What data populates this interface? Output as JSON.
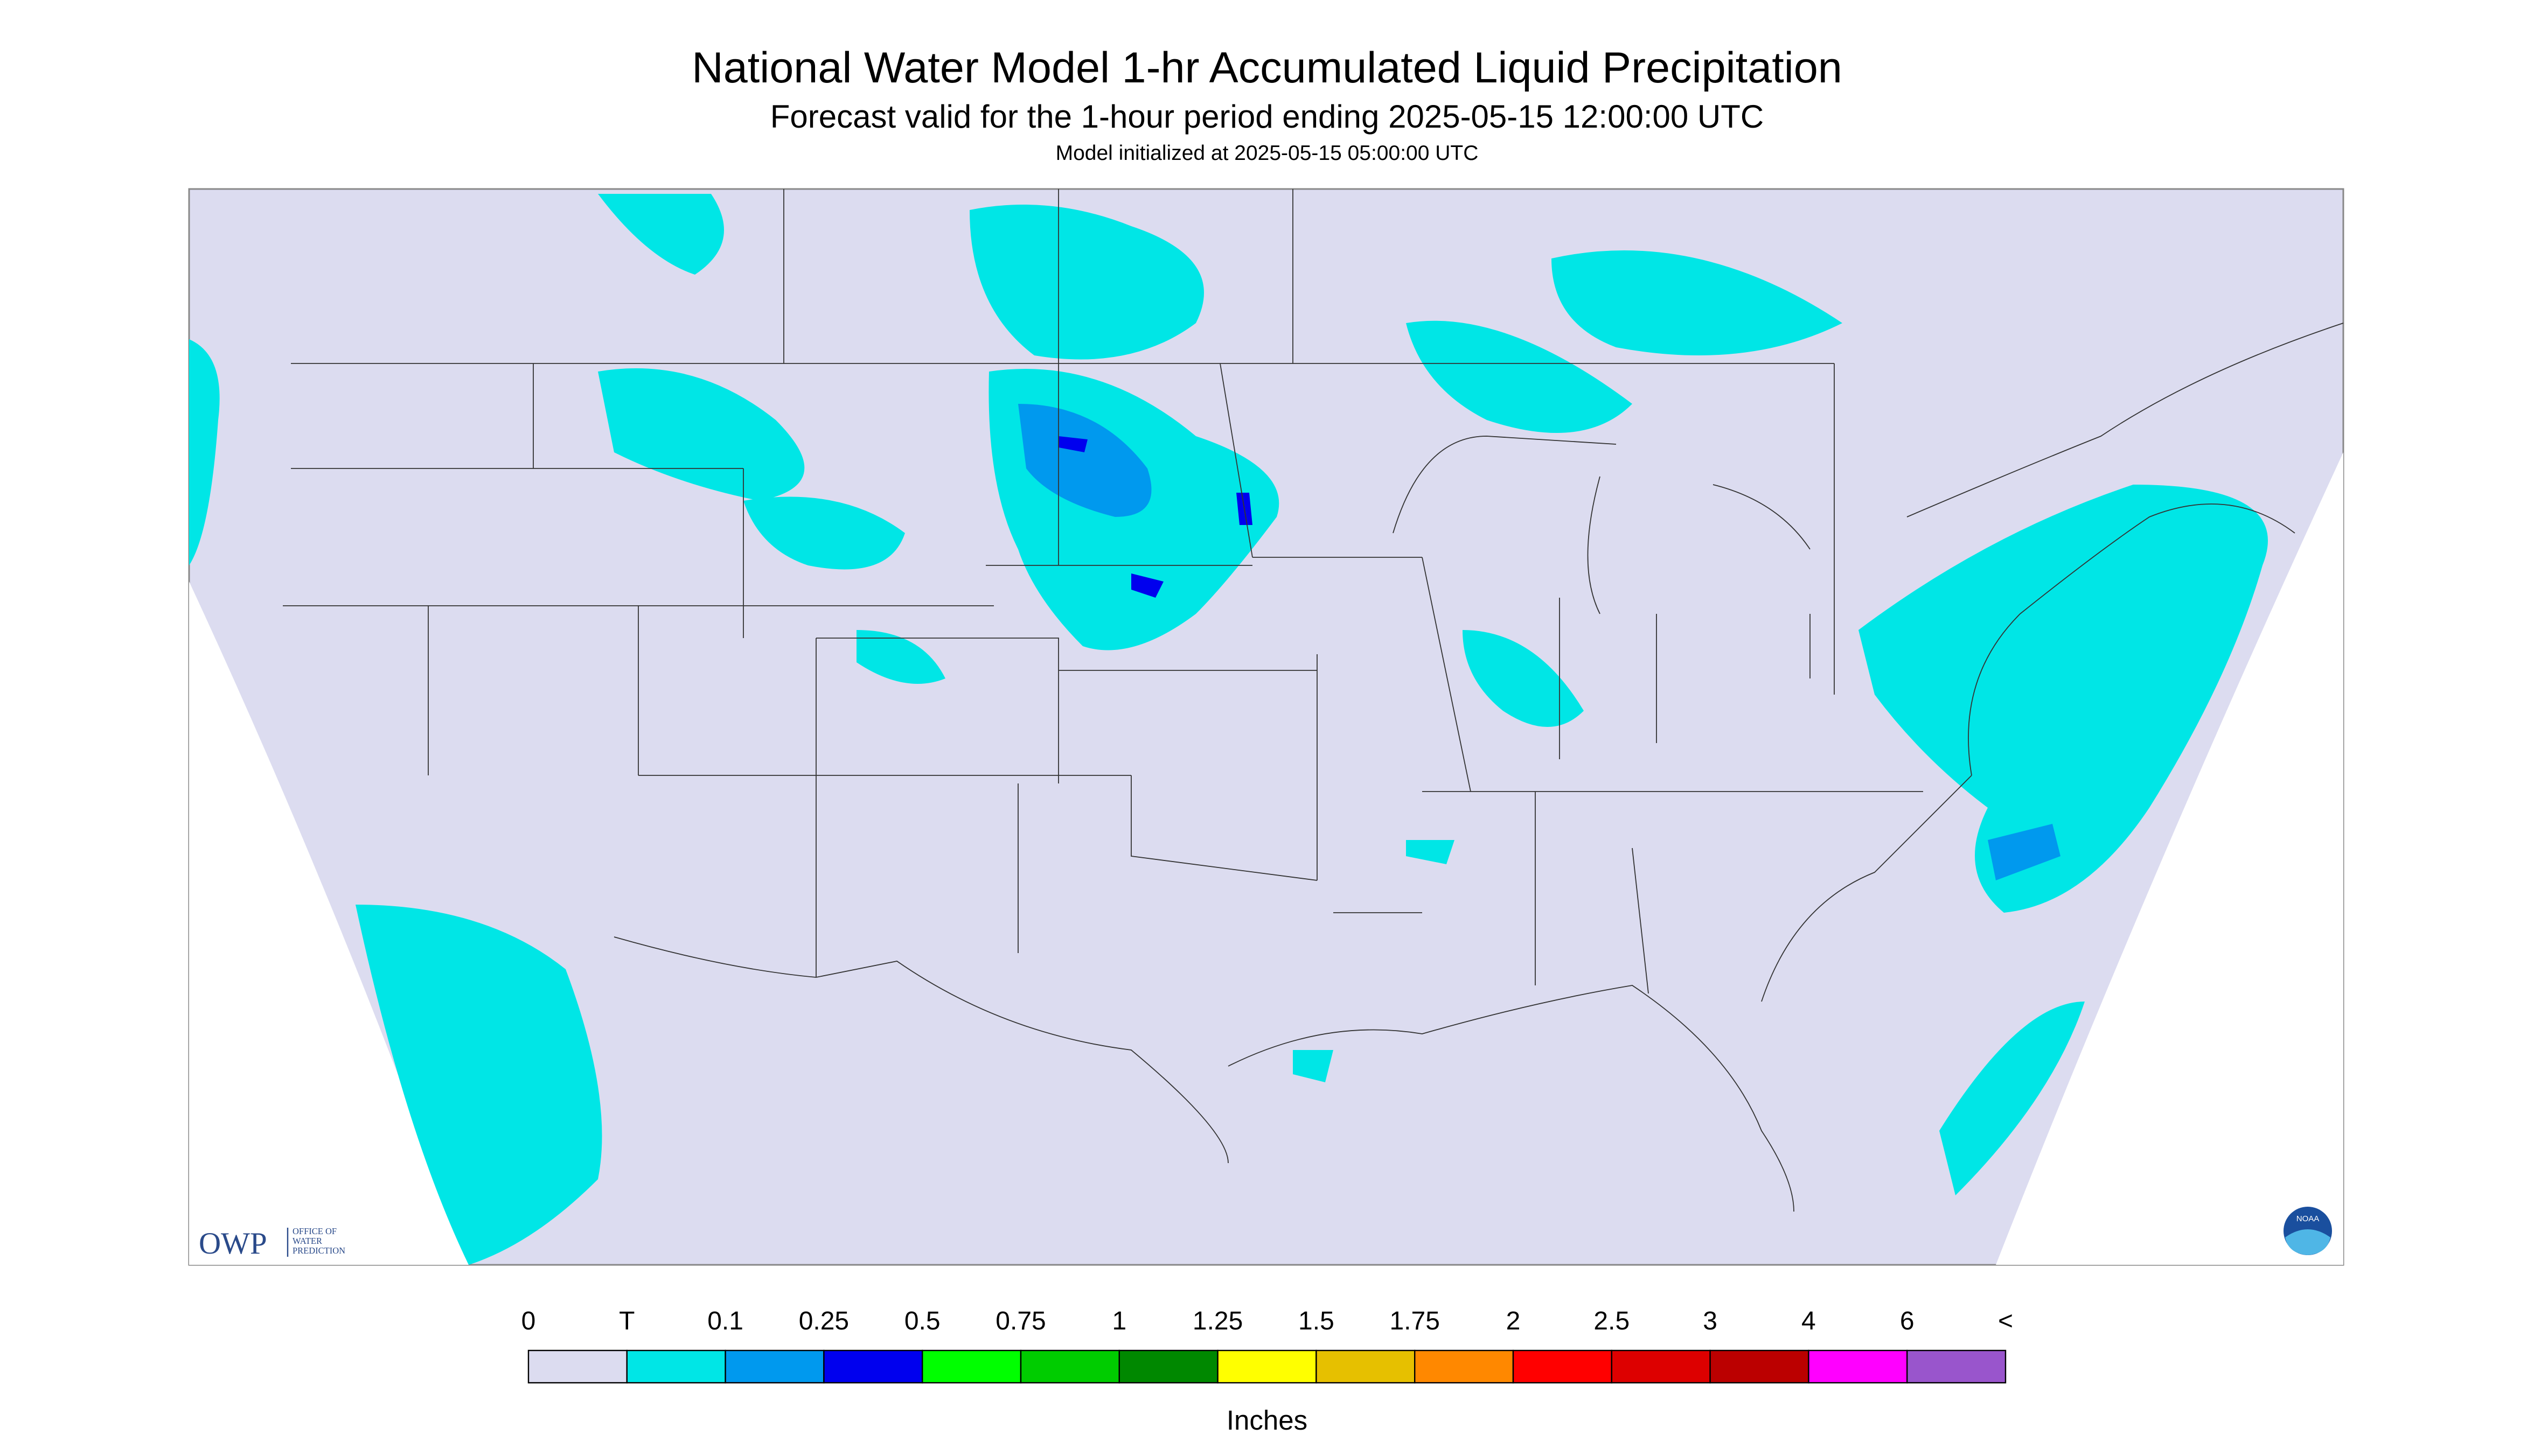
{
  "header": {
    "title": "National Water Model 1-hr Accumulated Liquid Precipitation",
    "subtitle": "Forecast valid for the 1-hour period ending 2025-05-15 12:00:00 UTC",
    "note": "Model initialized at 2025-05-15 05:00:00 UTC"
  },
  "logo": {
    "name": "OWP",
    "lines": [
      "OFFICE OF",
      "WATER",
      "PREDICTION"
    ],
    "badge": "NOAA"
  },
  "legend": {
    "labels": [
      "0",
      "T",
      "0.1",
      "0.25",
      "0.5",
      "0.75",
      "1",
      "1.25",
      "1.5",
      "1.75",
      "2",
      "2.5",
      "3",
      "4",
      "6",
      "<"
    ],
    "colors": [
      "#dcdcf0",
      "#00e6e6",
      "#0099ee",
      "#0000ee",
      "#00ff00",
      "#00cc00",
      "#008800",
      "#ffff00",
      "#e6c000",
      "#ff8800",
      "#ff0000",
      "#dd0000",
      "#bb0000",
      "#ff00ff",
      "#9955cc"
    ],
    "units": "Inches"
  }
}
